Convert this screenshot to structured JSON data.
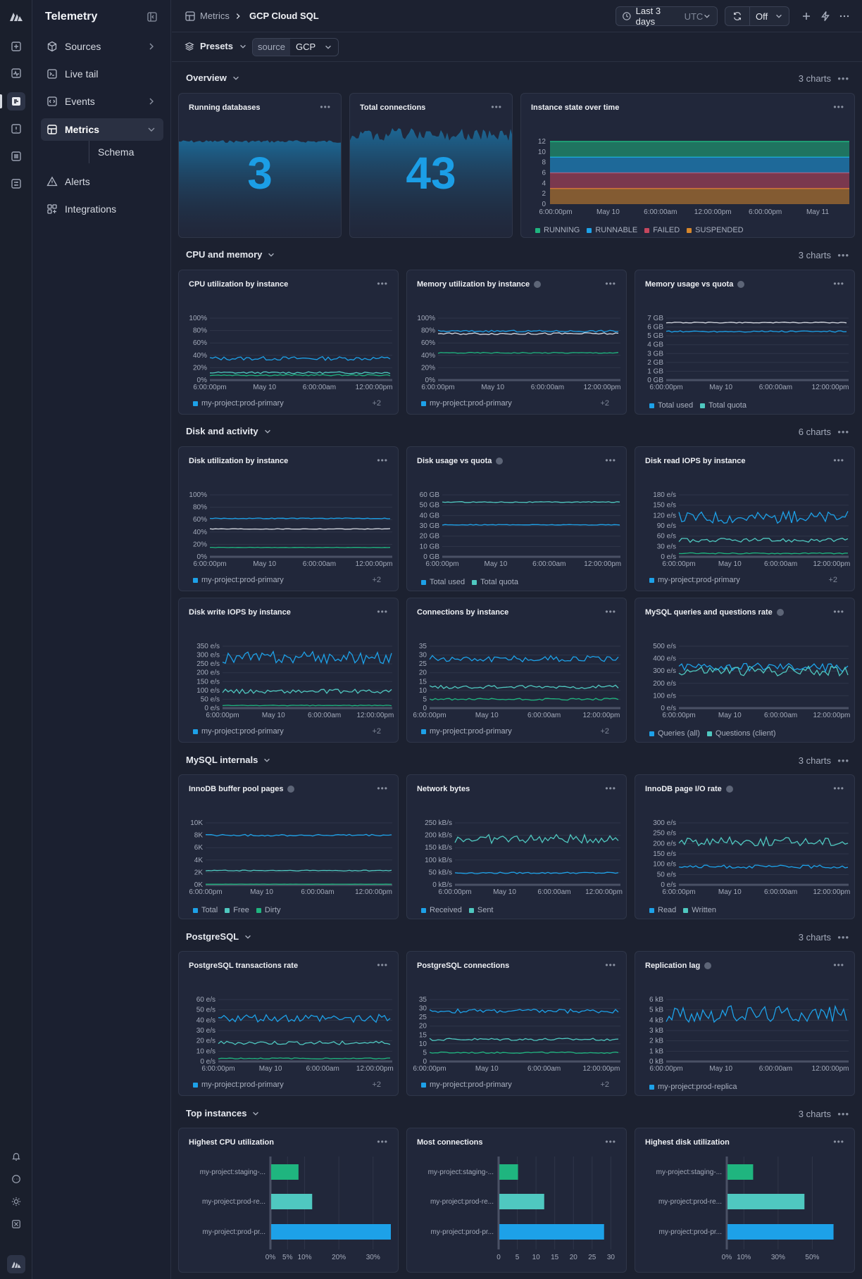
{
  "app": {
    "title": "Telemetry"
  },
  "nav": {
    "items": [
      {
        "label": "Sources",
        "icon": "cube-icon"
      },
      {
        "label": "Live tail",
        "icon": "terminal-icon"
      },
      {
        "label": "Events",
        "icon": "code-icon"
      },
      {
        "label": "Metrics",
        "icon": "grid-icon"
      },
      {
        "label": "Alerts",
        "icon": "warning-icon"
      },
      {
        "label": "Integrations",
        "icon": "apps-icon"
      }
    ],
    "sub_item": "Schema"
  },
  "breadcrumb": {
    "parent": "Metrics",
    "current": "GCP Cloud SQL"
  },
  "toolbar": {
    "time_range": "Last 3 days",
    "timezone": "UTC",
    "refresh": "Off"
  },
  "filters": {
    "presets_label": "Presets",
    "source_key": "source",
    "source_value": "GCP"
  },
  "colors": {
    "blue": "#1da1e8",
    "teal": "#4fc8c0",
    "green": "#1fb57f",
    "red": "#c5475e",
    "orange": "#d6862b",
    "background": "#1c2130",
    "card": "#21273a"
  },
  "sections": [
    {
      "title": "Overview",
      "count": "3 charts"
    },
    {
      "title": "CPU and memory",
      "count": "3 charts"
    },
    {
      "title": "Disk and activity",
      "count": "6 charts"
    },
    {
      "title": "MySQL internals",
      "count": "3 charts"
    },
    {
      "title": "PostgreSQL",
      "count": "3 charts"
    },
    {
      "title": "Top instances",
      "count": "3 charts"
    }
  ],
  "stats": [
    {
      "title": "Running databases",
      "value": "3"
    },
    {
      "title": "Total connections",
      "value": "43"
    }
  ],
  "chart_data": [
    {
      "id": "state",
      "type": "area",
      "title": "Instance state over time",
      "x_ticks": [
        "6:00:00pm",
        "May 10",
        "6:00:00am",
        "12:00:00pm",
        "6:00:00pm",
        "May 11"
      ],
      "y_ticks": [
        "0",
        "2",
        "4",
        "6",
        "8",
        "10",
        "12"
      ],
      "ylim": [
        0,
        12
      ],
      "series": [
        {
          "name": "RUNNING",
          "color": "#1fb57f",
          "values": [
            3
          ]
        },
        {
          "name": "RUNNABLE",
          "color": "#1da1e8",
          "values": [
            3
          ]
        },
        {
          "name": "FAILED",
          "color": "#c5475e",
          "values": [
            3
          ]
        },
        {
          "name": "SUSPENDED",
          "color": "#d6862b",
          "values": [
            3
          ]
        }
      ]
    },
    {
      "id": "cpu",
      "type": "line",
      "title": "CPU utilization by instance",
      "x_ticks": [
        "6:00:00pm",
        "May 10",
        "6:00:00am",
        "12:00:00pm"
      ],
      "y_ticks": [
        "0%",
        "20%",
        "40%",
        "60%",
        "80%",
        "100%"
      ],
      "ylim": [
        0,
        100
      ],
      "legend": [
        {
          "name": "my-project:prod-primary",
          "color": "#1da1e8"
        }
      ],
      "legend_more": "+2",
      "series": [
        {
          "color": "#1da1e8",
          "level": 35,
          "noise": 3
        },
        {
          "color": "#4fc8c0",
          "level": 12,
          "noise": 1.5
        },
        {
          "color": "#1fb57f",
          "level": 8,
          "noise": 1
        }
      ]
    },
    {
      "id": "mem",
      "type": "line",
      "title": "Memory utilization by instance",
      "info": true,
      "x_ticks": [
        "6:00:00pm",
        "May 10",
        "6:00:00am",
        "12:00:00pm"
      ],
      "y_ticks": [
        "0%",
        "20%",
        "40%",
        "60%",
        "80%",
        "100%"
      ],
      "ylim": [
        0,
        100
      ],
      "legend": [
        {
          "name": "my-project:prod-primary",
          "color": "#1da1e8"
        }
      ],
      "legend_more": "+2",
      "series": [
        {
          "color": "#1da1e8",
          "level": 79,
          "noise": 1.5
        },
        {
          "color": "#d7dbe3",
          "level": 75,
          "noise": 1.5
        },
        {
          "color": "#1fb57f",
          "level": 44,
          "noise": 0.8
        }
      ]
    },
    {
      "id": "memq",
      "type": "line",
      "title": "Memory usage vs quota",
      "info": true,
      "x_ticks": [
        "6:00:00pm",
        "May 10",
        "6:00:00am",
        "12:00:00pm"
      ],
      "y_ticks": [
        "0 GB",
        "1 GB",
        "2 GB",
        "3 GB",
        "4 GB",
        "5 GB",
        "6 GB",
        "7 GB"
      ],
      "ylim": [
        0,
        7
      ],
      "legend": [
        {
          "name": "Total used",
          "color": "#1da1e8"
        },
        {
          "name": "Total quota",
          "color": "#4fc8c0"
        }
      ],
      "series": [
        {
          "color": "#d7dbe3",
          "level": 6.5,
          "noise": 0.05
        },
        {
          "color": "#1da1e8",
          "level": 5.5,
          "noise": 0.08
        }
      ]
    },
    {
      "id": "disk",
      "type": "line",
      "title": "Disk utilization by instance",
      "x_ticks": [
        "6:00:00pm",
        "May 10",
        "6:00:00am",
        "12:00:00pm"
      ],
      "y_ticks": [
        "0%",
        "20%",
        "40%",
        "60%",
        "80%",
        "100%"
      ],
      "ylim": [
        0,
        100
      ],
      "legend": [
        {
          "name": "my-project:prod-primary",
          "color": "#1da1e8"
        }
      ],
      "legend_more": "+2",
      "series": [
        {
          "color": "#1da1e8",
          "level": 62,
          "noise": 0.6
        },
        {
          "color": "#d7dbe3",
          "level": 45,
          "noise": 0.5
        },
        {
          "color": "#1fb57f",
          "level": 15,
          "noise": 0.3
        }
      ]
    },
    {
      "id": "diskq",
      "type": "line",
      "title": "Disk usage vs quota",
      "info": true,
      "x_ticks": [
        "6:00:00pm",
        "May 10",
        "6:00:00am",
        "12:00:00pm"
      ],
      "y_ticks": [
        "0 GB",
        "10 GB",
        "20 GB",
        "30 GB",
        "40 GB",
        "50 GB",
        "60 GB"
      ],
      "ylim": [
        0,
        60
      ],
      "legend": [
        {
          "name": "Total used",
          "color": "#1da1e8"
        },
        {
          "name": "Total quota",
          "color": "#4fc8c0"
        }
      ],
      "series": [
        {
          "color": "#4fc8c0",
          "level": 53,
          "noise": 0.4
        },
        {
          "color": "#1da1e8",
          "level": 31,
          "noise": 0.3
        }
      ]
    },
    {
      "id": "riops",
      "type": "line",
      "title": "Disk read IOPS by instance",
      "x_ticks": [
        "6:00:00pm",
        "May 10",
        "6:00:00am",
        "12:00:00pm"
      ],
      "y_ticks": [
        "0 e/s",
        "30 e/s",
        "60 e/s",
        "90 e/s",
        "120 e/s",
        "150 e/s",
        "180 e/s"
      ],
      "ylim": [
        0,
        180
      ],
      "legend": [
        {
          "name": "my-project:prod-primary",
          "color": "#1da1e8"
        }
      ],
      "legend_more": "+2",
      "series": [
        {
          "color": "#1da1e8",
          "level": 115,
          "noise": 18
        },
        {
          "color": "#4fc8c0",
          "level": 48,
          "noise": 6
        },
        {
          "color": "#1fb57f",
          "level": 10,
          "noise": 1.5
        }
      ]
    },
    {
      "id": "wiops",
      "type": "line",
      "title": "Disk write IOPS by instance",
      "x_ticks": [
        "6:00:00pm",
        "May 10",
        "6:00:00am",
        "12:00:00pm"
      ],
      "y_ticks": [
        "0 e/s",
        "50 e/s",
        "100 e/s",
        "150 e/s",
        "200 e/s",
        "250 e/s",
        "300 e/s",
        "350 e/s"
      ],
      "ylim": [
        0,
        350
      ],
      "legend": [
        {
          "name": "my-project:prod-primary",
          "color": "#1da1e8"
        }
      ],
      "legend_more": "+2",
      "series": [
        {
          "color": "#1da1e8",
          "level": 285,
          "noise": 35
        },
        {
          "color": "#4fc8c0",
          "level": 95,
          "noise": 12
        },
        {
          "color": "#1fb57f",
          "level": 15,
          "noise": 2
        }
      ]
    },
    {
      "id": "conn",
      "type": "line",
      "title": "Connections by instance",
      "x_ticks": [
        "6:00:00pm",
        "May 10",
        "6:00:00am",
        "12:00:00pm"
      ],
      "y_ticks": [
        "0",
        "5",
        "10",
        "15",
        "20",
        "25",
        "30",
        "35"
      ],
      "ylim": [
        0,
        35
      ],
      "legend": [
        {
          "name": "my-project:prod-primary",
          "color": "#1da1e8"
        }
      ],
      "legend_more": "+2",
      "series": [
        {
          "color": "#1da1e8",
          "level": 28,
          "noise": 1.8
        },
        {
          "color": "#4fc8c0",
          "level": 12,
          "noise": 1
        },
        {
          "color": "#1fb57f",
          "level": 5,
          "noise": 0.6
        }
      ]
    },
    {
      "id": "qps",
      "type": "line",
      "title": "MySQL queries and questions rate",
      "info": true,
      "x_ticks": [
        "6:00:00pm",
        "May 10",
        "6:00:00am",
        "12:00:00pm"
      ],
      "y_ticks": [
        "0 e/s",
        "100 e/s",
        "200 e/s",
        "300 e/s",
        "400 e/s",
        "500 e/s"
      ],
      "ylim": [
        0,
        500
      ],
      "legend": [
        {
          "name": "Queries (all)",
          "color": "#1da1e8"
        },
        {
          "name": "Questions (client)",
          "color": "#4fc8c0"
        }
      ],
      "series": [
        {
          "color": "#1da1e8",
          "level": 330,
          "noise": 35
        },
        {
          "color": "#4fc8c0",
          "level": 300,
          "noise": 40
        }
      ]
    },
    {
      "id": "innodb",
      "type": "line",
      "title": "InnoDB buffer pool pages",
      "info": true,
      "x_ticks": [
        "6:00:00pm",
        "May 10",
        "6:00:00am",
        "12:00:00pm"
      ],
      "y_ticks": [
        "0K",
        "2K",
        "4K",
        "6K",
        "8K",
        "10K"
      ],
      "ylim": [
        0,
        10
      ],
      "legend": [
        {
          "name": "Total",
          "color": "#1da1e8"
        },
        {
          "name": "Free",
          "color": "#4fc8c0"
        },
        {
          "name": "Dirty",
          "color": "#1fb57f"
        }
      ],
      "series": [
        {
          "color": "#1da1e8",
          "level": 8,
          "noise": 0.15
        },
        {
          "color": "#4fc8c0",
          "level": 2.3,
          "noise": 0.08
        },
        {
          "color": "#1fb57f",
          "level": 0.1,
          "noise": 0.02
        }
      ]
    },
    {
      "id": "net",
      "type": "line",
      "title": "Network bytes",
      "x_ticks": [
        "6:00:00pm",
        "May 10",
        "6:00:00am",
        "12:00:00pm"
      ],
      "y_ticks": [
        "0 kB/s",
        "50 kB/s",
        "100 kB/s",
        "150 kB/s",
        "200 kB/s",
        "250 kB/s"
      ],
      "ylim": [
        0,
        250
      ],
      "legend": [
        {
          "name": "Received",
          "color": "#1da1e8"
        },
        {
          "name": "Sent",
          "color": "#4fc8c0"
        }
      ],
      "series": [
        {
          "color": "#4fc8c0",
          "level": 185,
          "noise": 18
        },
        {
          "color": "#1da1e8",
          "level": 48,
          "noise": 3
        }
      ]
    },
    {
      "id": "pageio",
      "type": "line",
      "title": "InnoDB page I/O rate",
      "info": true,
      "x_ticks": [
        "6:00:00pm",
        "May 10",
        "6:00:00am",
        "12:00:00pm"
      ],
      "y_ticks": [
        "0 e/s",
        "50 e/s",
        "100 e/s",
        "150 e/s",
        "200 e/s",
        "250 e/s",
        "300 e/s"
      ],
      "ylim": [
        0,
        300
      ],
      "legend": [
        {
          "name": "Read",
          "color": "#1da1e8"
        },
        {
          "name": "Written",
          "color": "#4fc8c0"
        }
      ],
      "series": [
        {
          "color": "#4fc8c0",
          "level": 210,
          "noise": 22
        },
        {
          "color": "#1da1e8",
          "level": 88,
          "noise": 8
        }
      ]
    },
    {
      "id": "pgtx",
      "type": "line",
      "title": "PostgreSQL transactions rate",
      "x_ticks": [
        "6:00:00pm",
        "May 10",
        "6:00:00am",
        "12:00:00pm"
      ],
      "y_ticks": [
        "0 e/s",
        "10 e/s",
        "20 e/s",
        "30 e/s",
        "40 e/s",
        "50 e/s",
        "60 e/s"
      ],
      "ylim": [
        0,
        60
      ],
      "legend": [
        {
          "name": "my-project:prod-primary",
          "color": "#1da1e8"
        }
      ],
      "legend_more": "+2",
      "series": [
        {
          "color": "#1da1e8",
          "level": 42,
          "noise": 4
        },
        {
          "color": "#4fc8c0",
          "level": 18,
          "noise": 1.8
        },
        {
          "color": "#1fb57f",
          "level": 3,
          "noise": 0.5
        }
      ]
    },
    {
      "id": "pgconn",
      "type": "line",
      "title": "PostgreSQL connections",
      "x_ticks": [
        "6:00:00pm",
        "May 10",
        "6:00:00am",
        "12:00:00pm"
      ],
      "y_ticks": [
        "0",
        "5",
        "10",
        "15",
        "20",
        "25",
        "30",
        "35"
      ],
      "ylim": [
        0,
        35
      ],
      "legend": [
        {
          "name": "my-project:prod-primary",
          "color": "#1da1e8"
        }
      ],
      "legend_more": "+2",
      "series": [
        {
          "color": "#1da1e8",
          "level": 28.5,
          "noise": 1.2
        },
        {
          "color": "#4fc8c0",
          "level": 12.5,
          "noise": 0.7
        },
        {
          "color": "#1fb57f",
          "level": 5,
          "noise": 0.4
        }
      ]
    },
    {
      "id": "replag",
      "type": "line",
      "title": "Replication lag",
      "info": true,
      "x_ticks": [
        "6:00:00pm",
        "May 10",
        "6:00:00am",
        "12:00:00pm"
      ],
      "y_ticks": [
        "0 kB",
        "1 kB",
        "2 kB",
        "3 kB",
        "4 kB",
        "5 kB",
        "6 kB"
      ],
      "ylim": [
        0,
        6
      ],
      "legend": [
        {
          "name": "my-project:prod-replica",
          "color": "#1da1e8"
        }
      ],
      "series": [
        {
          "color": "#1da1e8",
          "level": 4.6,
          "noise": 0.8
        }
      ]
    },
    {
      "id": "topcpu",
      "type": "bar",
      "title": "Highest CPU utilization",
      "categories": [
        "my-project:staging-...",
        "my-project:prod-re...",
        "my-project:prod-pr..."
      ],
      "values": [
        8,
        12,
        35
      ],
      "colors": [
        "#1fb57f",
        "#4fc8c0",
        "#1da1e8"
      ],
      "x_ticks": [
        "0%",
        "5%",
        "10%",
        "20%",
        "30%"
      ],
      "x_tick_values": [
        0,
        5,
        10,
        20,
        30
      ],
      "xlim": [
        0,
        35
      ]
    },
    {
      "id": "topconn",
      "type": "bar",
      "title": "Most connections",
      "categories": [
        "my-project:staging-...",
        "my-project:prod-re...",
        "my-project:prod-pr..."
      ],
      "values": [
        5,
        12,
        28
      ],
      "colors": [
        "#1fb57f",
        "#4fc8c0",
        "#1da1e8"
      ],
      "x_ticks": [
        "0",
        "5",
        "10",
        "15",
        "20",
        "25",
        "30"
      ],
      "x_tick_values": [
        0,
        5,
        10,
        15,
        20,
        25,
        30
      ],
      "xlim": [
        0,
        32
      ]
    },
    {
      "id": "topdisk",
      "type": "bar",
      "title": "Highest disk utilization",
      "categories": [
        "my-project:staging-...",
        "my-project:prod-re...",
        "my-project:prod-pr..."
      ],
      "values": [
        15,
        45,
        62
      ],
      "colors": [
        "#1fb57f",
        "#4fc8c0",
        "#1da1e8"
      ],
      "x_ticks": [
        "0%",
        "10%",
        "30%",
        "50%"
      ],
      "x_tick_values": [
        0,
        10,
        30,
        50
      ],
      "xlim": [
        0,
        70
      ]
    }
  ]
}
